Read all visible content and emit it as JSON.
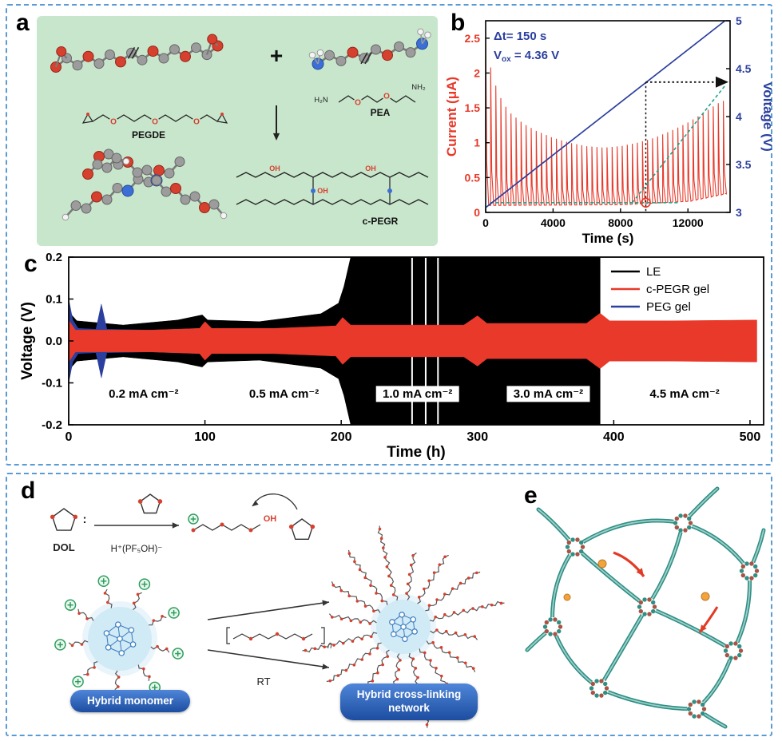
{
  "figure": {
    "bg": "#ffffff",
    "border_color": "#5b9bd5"
  },
  "panel_a": {
    "label": "a",
    "bg": "#c8e6cc",
    "plus": "+",
    "reactant1": "PEGDE",
    "reactant2": "PEA",
    "product": "c-PEGR",
    "amine_left": "H₂N",
    "amine_right": "NH₂",
    "atom_o": "O",
    "oh": "OH"
  },
  "panel_b": {
    "label": "b"
  },
  "panel_c": {
    "label": "c"
  },
  "panel_d": {
    "label": "d",
    "dol": "DOL",
    "colon": ":",
    "catalyst": "H⁺(PF₅OH)⁻",
    "oh": "OH",
    "rt": "RT",
    "n_sub": "n",
    "pill_monomer": "Hybrid monomer",
    "pill_network_line1": "Hybrid cross-linking",
    "pill_network_line2": "network",
    "pill_top": "#4f86d9",
    "pill_bottom": "#1c4da0"
  },
  "panel_e": {
    "label": "e"
  },
  "chart_data": [
    {
      "id": "panel-b",
      "type": "line",
      "xlabel": "Time (s)",
      "ylabel_left": "Current (μA)",
      "ylabel_right": "Voltage (V)",
      "xlim": [
        0,
        14500
      ],
      "xticks": [
        0,
        4000,
        8000,
        12000
      ],
      "xtick_labels": [
        "0",
        "4000",
        "8000",
        "12000"
      ],
      "ylim_left": [
        0,
        2.75
      ],
      "yticks_left": [
        0,
        0.5,
        1,
        1.5,
        2,
        2.5
      ],
      "ytick_labels_left": [
        "0",
        "0.5",
        "1",
        "1.5",
        "2",
        "2.5"
      ],
      "ylim_right": [
        3,
        5
      ],
      "yticks_right": [
        3,
        3.5,
        4,
        4.5,
        5
      ],
      "ytick_labels_right": [
        "3",
        "3.5",
        "4",
        "4.5",
        "5"
      ],
      "axis_color_left": "#e8392a",
      "axis_color_right": "#2b3f9e",
      "series_colors": {
        "current": "#e8392a",
        "voltage": "#2b3f9e"
      },
      "pulse_period_s": 300,
      "pulse_envelope": [
        [
          0,
          2.62
        ],
        [
          150,
          2.35
        ],
        [
          300,
          2.08
        ],
        [
          600,
          1.82
        ],
        [
          1000,
          1.58
        ],
        [
          1500,
          1.42
        ],
        [
          2200,
          1.28
        ],
        [
          3000,
          1.17
        ],
        [
          4000,
          1.07
        ],
        [
          5000,
          1.0
        ],
        [
          6000,
          0.95
        ],
        [
          7000,
          0.93
        ],
        [
          8000,
          0.95
        ],
        [
          9000,
          1.0
        ],
        [
          10000,
          1.07
        ],
        [
          11000,
          1.17
        ],
        [
          12000,
          1.29
        ],
        [
          13000,
          1.44
        ],
        [
          14000,
          1.6
        ]
      ],
      "baseline": [
        [
          0,
          0.1
        ],
        [
          8000,
          0.11
        ],
        [
          12000,
          0.16
        ],
        [
          14200,
          0.27
        ]
      ],
      "voltage_line": [
        [
          0,
          3.05
        ],
        [
          14200,
          5.0
        ]
      ],
      "vox_time": 9500,
      "vox_value": 4.36,
      "guide_horizontal": {
        "current": 0.14,
        "t1": 250,
        "t2": 11400
      },
      "guide_diagonal": {
        "t1": 8700,
        "c1": 0.14,
        "t2": 14200,
        "c2": 1.82
      },
      "guide_color": "#1fa48e",
      "annotations": {
        "dt": "Δt= 150 s",
        "vox_v": "V",
        "vox_sub": "ox",
        "vox_rest": "= 4.36 V"
      }
    },
    {
      "id": "panel-c",
      "type": "line",
      "xlabel": "Time (h)",
      "ylabel": "Voltage (V)",
      "xlim": [
        0,
        510
      ],
      "xticks": [
        0,
        100,
        200,
        300,
        400,
        500
      ],
      "xtick_labels": [
        "0",
        "100",
        "200",
        "300",
        "400",
        "500"
      ],
      "ylim": [
        -0.2,
        0.2
      ],
      "yticks": [
        -0.2,
        -0.1,
        0,
        0.1,
        0.2
      ],
      "ytick_labels": [
        "-0.2",
        "-0.1",
        "0.0",
        "0.1",
        "0.2"
      ],
      "legend": [
        {
          "label": "LE",
          "color": "#000000"
        },
        {
          "label": "c-PEGR gel",
          "color": "#e8392a"
        },
        {
          "label": "PEG gel",
          "color": "#2b3f9e"
        }
      ],
      "rate_labels": [
        {
          "text": "0.2 mA cm⁻²",
          "t": 55
        },
        {
          "text": "0.5 mA cm⁻²",
          "t": 158
        },
        {
          "text": "1.0 mA cm⁻²",
          "t": 256
        },
        {
          "text": "3.0 mA cm⁻²",
          "t": 352
        },
        {
          "text": "4.5 mA cm⁻²",
          "t": 452
        }
      ],
      "rate_label_y": -0.135,
      "series": [
        {
          "name": "LE",
          "color": "#000000",
          "envelope": [
            [
              0,
              0.07
            ],
            [
              6,
              0.048
            ],
            [
              40,
              0.038
            ],
            [
              80,
              0.05
            ],
            [
              98,
              0.062
            ],
            [
              102,
              0.05
            ],
            [
              140,
              0.046
            ],
            [
              185,
              0.065
            ],
            [
              198,
              0.09
            ],
            [
              202,
              0.13
            ],
            [
              207,
              0.2
            ],
            [
              388,
              0.2
            ],
            [
              390,
              0.2
            ]
          ]
        },
        {
          "name": "PEG gel",
          "color": "#2b3f9e",
          "envelope": [
            [
              0,
              0.1
            ],
            [
              3,
              0.05
            ],
            [
              7,
              0.03
            ],
            [
              20,
              0.028
            ],
            [
              24,
              0.088
            ],
            [
              28,
              0.028
            ],
            [
              60,
              0.026
            ],
            [
              96,
              0.03
            ],
            [
              100,
              0.03
            ]
          ]
        },
        {
          "name": "c-PEGR gel",
          "color": "#e8392a",
          "envelope": [
            [
              0,
              0.05
            ],
            [
              5,
              0.026
            ],
            [
              60,
              0.026
            ],
            [
              96,
              0.03
            ],
            [
              100,
              0.046
            ],
            [
              105,
              0.03
            ],
            [
              150,
              0.03
            ],
            [
              196,
              0.036
            ],
            [
              201,
              0.056
            ],
            [
              207,
              0.038
            ],
            [
              290,
              0.038
            ],
            [
              300,
              0.06
            ],
            [
              307,
              0.042
            ],
            [
              380,
              0.042
            ],
            [
              390,
              0.066
            ],
            [
              397,
              0.048
            ],
            [
              440,
              0.048
            ],
            [
              505,
              0.05
            ]
          ]
        }
      ],
      "gap_lines_t": [
        252,
        262,
        271
      ]
    }
  ]
}
